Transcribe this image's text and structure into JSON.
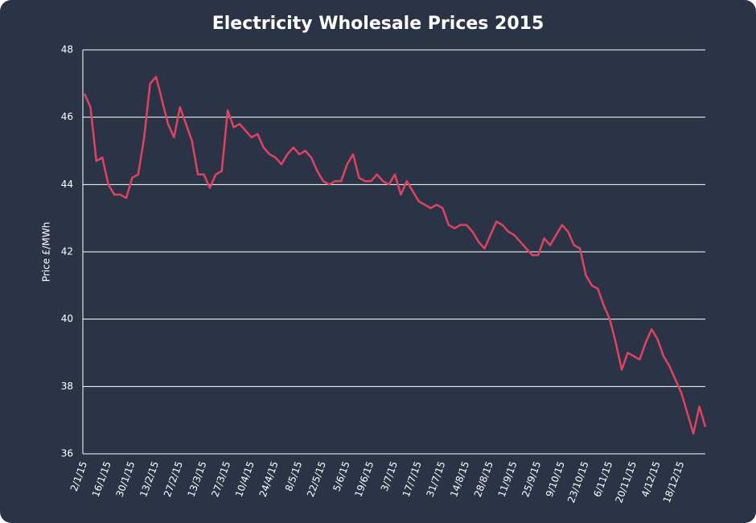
{
  "chart_data": {
    "type": "line",
    "title": "Electricity Wholesale Prices 2015",
    "y_label": "Price £/MWh",
    "categories": [
      "2/1/15",
      null,
      null,
      null,
      "16/1/15",
      null,
      null,
      null,
      "30/1/15",
      null,
      null,
      null,
      "13/2/15",
      null,
      null,
      null,
      "27/2/15",
      null,
      null,
      null,
      "13/3/15",
      null,
      null,
      null,
      "27/3/15",
      null,
      null,
      null,
      "10/4/15",
      null,
      null,
      null,
      "24/4/15",
      null,
      null,
      null,
      "8/5/15",
      null,
      null,
      null,
      "22/5/15",
      null,
      null,
      null,
      "5/6/15",
      null,
      null,
      null,
      "19/6/15",
      null,
      null,
      null,
      "3/7/15",
      null,
      null,
      null,
      "17/7/15",
      null,
      null,
      null,
      "31/7/15",
      null,
      null,
      null,
      "14/8/15",
      null,
      null,
      null,
      "28/8/15",
      null,
      null,
      null,
      "11/9/15",
      null,
      null,
      null,
      "25/9/15",
      null,
      null,
      null,
      "9/10/15",
      null,
      null,
      null,
      "23/10/15",
      null,
      null,
      null,
      "6/11/15",
      null,
      null,
      null,
      "20/11/15",
      null,
      null,
      null,
      "4/12/15",
      null,
      null,
      null,
      "18/12/15",
      null,
      null,
      null,
      null
    ],
    "series": [
      {
        "name": "Price",
        "color": "#e0435f",
        "values": [
          46.7,
          46.3,
          44.7,
          44.8,
          44.0,
          43.7,
          43.7,
          43.6,
          44.2,
          44.3,
          45.4,
          47.0,
          47.2,
          46.5,
          45.8,
          45.4,
          46.3,
          45.8,
          45.3,
          44.3,
          44.3,
          43.9,
          44.3,
          44.4,
          46.2,
          45.7,
          45.8,
          45.6,
          45.4,
          45.5,
          45.1,
          44.9,
          44.8,
          44.6,
          44.9,
          45.1,
          44.9,
          45.0,
          44.8,
          44.4,
          44.1,
          44.0,
          44.1,
          44.1,
          44.6,
          44.9,
          44.2,
          44.1,
          44.1,
          44.3,
          44.1,
          44.0,
          44.3,
          43.7,
          44.1,
          43.8,
          43.5,
          43.4,
          43.3,
          43.4,
          43.3,
          42.8,
          42.7,
          42.8,
          42.8,
          42.6,
          42.3,
          42.1,
          42.5,
          42.9,
          42.8,
          42.6,
          42.5,
          42.3,
          42.1,
          41.9,
          41.9,
          42.4,
          42.2,
          42.5,
          42.8,
          42.6,
          42.2,
          42.1,
          41.3,
          41.0,
          40.9,
          40.4,
          40.0,
          39.3,
          38.5,
          39.0,
          38.9,
          38.8,
          39.3,
          39.7,
          39.4,
          38.9,
          38.6,
          38.2,
          37.8,
          37.2,
          36.6,
          37.4,
          36.8
        ]
      }
    ],
    "ylim": [
      36,
      48
    ],
    "yticks": [
      36,
      38,
      40,
      42,
      44,
      46,
      48
    ],
    "grid": true
  }
}
